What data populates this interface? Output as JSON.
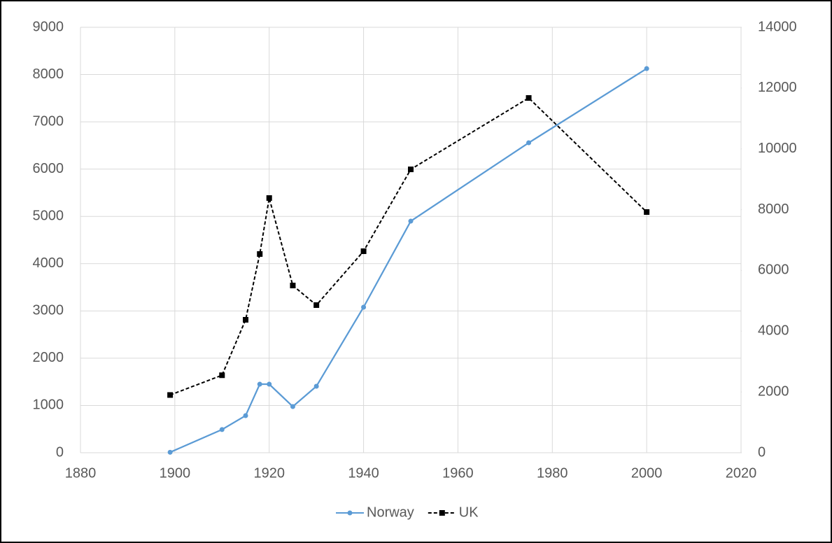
{
  "chart_data": {
    "type": "line",
    "x": [
      1899,
      1910,
      1915,
      1918,
      1920,
      1925,
      1930,
      1940,
      1950,
      1975,
      2000
    ],
    "series": [
      {
        "name": "Norway",
        "color": "#5b9bd5",
        "linestyle": "solid",
        "marker": "circle",
        "values": [
          10,
          490,
          785,
          1450,
          1450,
          977,
          1406,
          3079,
          4899,
          6557,
          8126
        ]
      },
      {
        "name": "UK",
        "color": "#000000",
        "linestyle": "dashed",
        "marker": "square",
        "axis": "y2",
        "values": [
          1900,
          2550,
          4375,
          6539,
          8381,
          5503,
          4858,
          6631,
          9325,
          11674,
          7921
        ]
      }
    ],
    "xlim": [
      1880,
      2020
    ],
    "xticks": [
      1880,
      1900,
      1920,
      1940,
      1960,
      1980,
      2000,
      2020
    ],
    "ylim": [
      0,
      9000
    ],
    "yticks": [
      0,
      1000,
      2000,
      3000,
      4000,
      5000,
      6000,
      7000,
      8000,
      9000
    ],
    "y2lim": [
      0,
      14000
    ],
    "y2ticks": [
      0,
      2000,
      4000,
      6000,
      8000,
      10000,
      12000,
      14000
    ],
    "grid": true,
    "legend": "bottom"
  }
}
